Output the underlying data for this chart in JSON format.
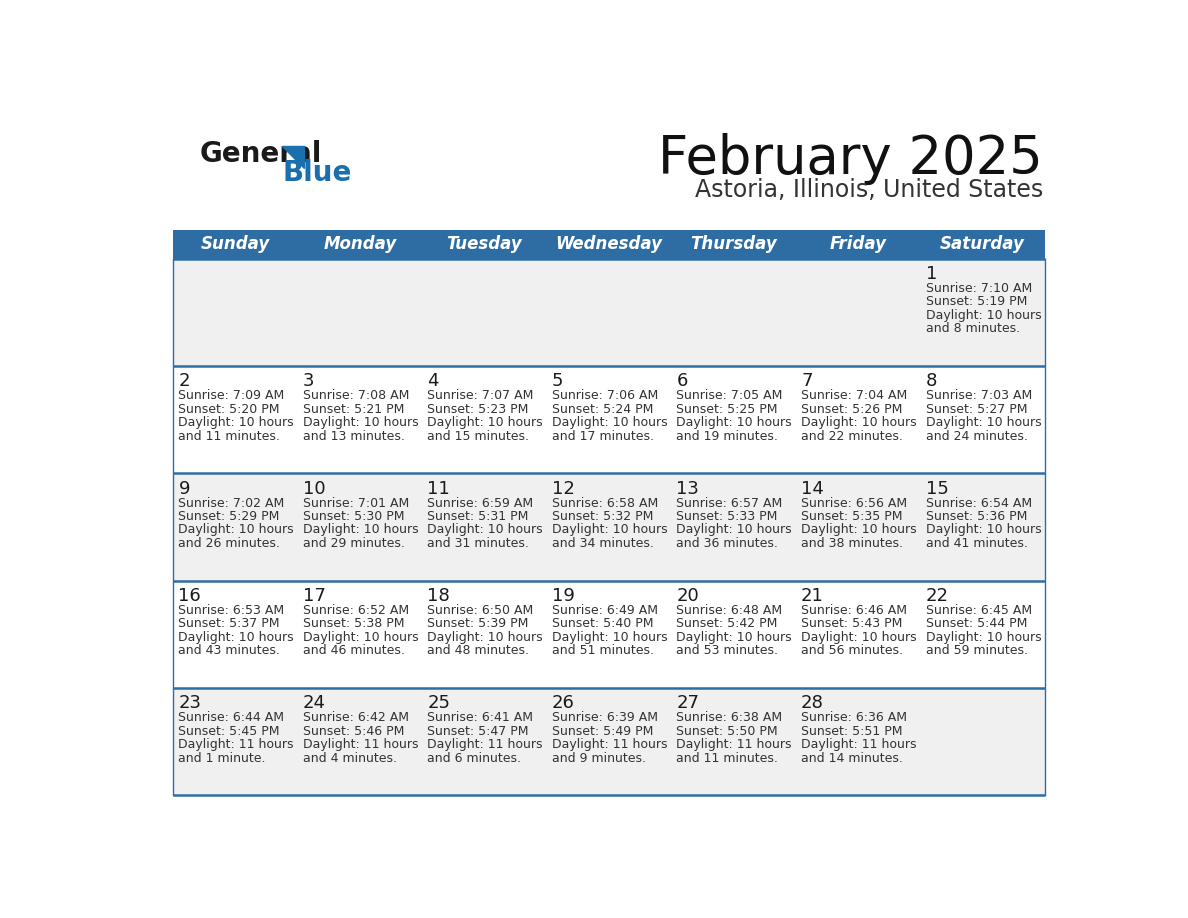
{
  "title": "February 2025",
  "subtitle": "Astoria, Illinois, United States",
  "header_bg_color": "#2e6da4",
  "header_text_color": "#ffffff",
  "days_of_week": [
    "Sunday",
    "Monday",
    "Tuesday",
    "Wednesday",
    "Thursday",
    "Friday",
    "Saturday"
  ],
  "row_odd_bg": "#f0f0f0",
  "row_even_bg": "#ffffff",
  "cell_border_color": "#2e6da4",
  "day_num_color": "#1a1a1a",
  "text_color": "#333333",
  "logo_general_color": "#1a1a1a",
  "logo_blue_color": "#1a6fad",
  "logo_triangle_color": "#1a6fad",
  "calendar_data": [
    [
      null,
      null,
      null,
      null,
      null,
      null,
      {
        "day": "1",
        "sunrise": "7:10 AM",
        "sunset": "5:19 PM",
        "daylight_line1": "Daylight: 10 hours",
        "daylight_line2": "and 8 minutes."
      }
    ],
    [
      {
        "day": "2",
        "sunrise": "7:09 AM",
        "sunset": "5:20 PM",
        "daylight_line1": "Daylight: 10 hours",
        "daylight_line2": "and 11 minutes."
      },
      {
        "day": "3",
        "sunrise": "7:08 AM",
        "sunset": "5:21 PM",
        "daylight_line1": "Daylight: 10 hours",
        "daylight_line2": "and 13 minutes."
      },
      {
        "day": "4",
        "sunrise": "7:07 AM",
        "sunset": "5:23 PM",
        "daylight_line1": "Daylight: 10 hours",
        "daylight_line2": "and 15 minutes."
      },
      {
        "day": "5",
        "sunrise": "7:06 AM",
        "sunset": "5:24 PM",
        "daylight_line1": "Daylight: 10 hours",
        "daylight_line2": "and 17 minutes."
      },
      {
        "day": "6",
        "sunrise": "7:05 AM",
        "sunset": "5:25 PM",
        "daylight_line1": "Daylight: 10 hours",
        "daylight_line2": "and 19 minutes."
      },
      {
        "day": "7",
        "sunrise": "7:04 AM",
        "sunset": "5:26 PM",
        "daylight_line1": "Daylight: 10 hours",
        "daylight_line2": "and 22 minutes."
      },
      {
        "day": "8",
        "sunrise": "7:03 AM",
        "sunset": "5:27 PM",
        "daylight_line1": "Daylight: 10 hours",
        "daylight_line2": "and 24 minutes."
      }
    ],
    [
      {
        "day": "9",
        "sunrise": "7:02 AM",
        "sunset": "5:29 PM",
        "daylight_line1": "Daylight: 10 hours",
        "daylight_line2": "and 26 minutes."
      },
      {
        "day": "10",
        "sunrise": "7:01 AM",
        "sunset": "5:30 PM",
        "daylight_line1": "Daylight: 10 hours",
        "daylight_line2": "and 29 minutes."
      },
      {
        "day": "11",
        "sunrise": "6:59 AM",
        "sunset": "5:31 PM",
        "daylight_line1": "Daylight: 10 hours",
        "daylight_line2": "and 31 minutes."
      },
      {
        "day": "12",
        "sunrise": "6:58 AM",
        "sunset": "5:32 PM",
        "daylight_line1": "Daylight: 10 hours",
        "daylight_line2": "and 34 minutes."
      },
      {
        "day": "13",
        "sunrise": "6:57 AM",
        "sunset": "5:33 PM",
        "daylight_line1": "Daylight: 10 hours",
        "daylight_line2": "and 36 minutes."
      },
      {
        "day": "14",
        "sunrise": "6:56 AM",
        "sunset": "5:35 PM",
        "daylight_line1": "Daylight: 10 hours",
        "daylight_line2": "and 38 minutes."
      },
      {
        "day": "15",
        "sunrise": "6:54 AM",
        "sunset": "5:36 PM",
        "daylight_line1": "Daylight: 10 hours",
        "daylight_line2": "and 41 minutes."
      }
    ],
    [
      {
        "day": "16",
        "sunrise": "6:53 AM",
        "sunset": "5:37 PM",
        "daylight_line1": "Daylight: 10 hours",
        "daylight_line2": "and 43 minutes."
      },
      {
        "day": "17",
        "sunrise": "6:52 AM",
        "sunset": "5:38 PM",
        "daylight_line1": "Daylight: 10 hours",
        "daylight_line2": "and 46 minutes."
      },
      {
        "day": "18",
        "sunrise": "6:50 AM",
        "sunset": "5:39 PM",
        "daylight_line1": "Daylight: 10 hours",
        "daylight_line2": "and 48 minutes."
      },
      {
        "day": "19",
        "sunrise": "6:49 AM",
        "sunset": "5:40 PM",
        "daylight_line1": "Daylight: 10 hours",
        "daylight_line2": "and 51 minutes."
      },
      {
        "day": "20",
        "sunrise": "6:48 AM",
        "sunset": "5:42 PM",
        "daylight_line1": "Daylight: 10 hours",
        "daylight_line2": "and 53 minutes."
      },
      {
        "day": "21",
        "sunrise": "6:46 AM",
        "sunset": "5:43 PM",
        "daylight_line1": "Daylight: 10 hours",
        "daylight_line2": "and 56 minutes."
      },
      {
        "day": "22",
        "sunrise": "6:45 AM",
        "sunset": "5:44 PM",
        "daylight_line1": "Daylight: 10 hours",
        "daylight_line2": "and 59 minutes."
      }
    ],
    [
      {
        "day": "23",
        "sunrise": "6:44 AM",
        "sunset": "5:45 PM",
        "daylight_line1": "Daylight: 11 hours",
        "daylight_line2": "and 1 minute."
      },
      {
        "day": "24",
        "sunrise": "6:42 AM",
        "sunset": "5:46 PM",
        "daylight_line1": "Daylight: 11 hours",
        "daylight_line2": "and 4 minutes."
      },
      {
        "day": "25",
        "sunrise": "6:41 AM",
        "sunset": "5:47 PM",
        "daylight_line1": "Daylight: 11 hours",
        "daylight_line2": "and 6 minutes."
      },
      {
        "day": "26",
        "sunrise": "6:39 AM",
        "sunset": "5:49 PM",
        "daylight_line1": "Daylight: 11 hours",
        "daylight_line2": "and 9 minutes."
      },
      {
        "day": "27",
        "sunrise": "6:38 AM",
        "sunset": "5:50 PM",
        "daylight_line1": "Daylight: 11 hours",
        "daylight_line2": "and 11 minutes."
      },
      {
        "day": "28",
        "sunrise": "6:36 AM",
        "sunset": "5:51 PM",
        "daylight_line1": "Daylight: 11 hours",
        "daylight_line2": "and 14 minutes."
      },
      null
    ]
  ]
}
